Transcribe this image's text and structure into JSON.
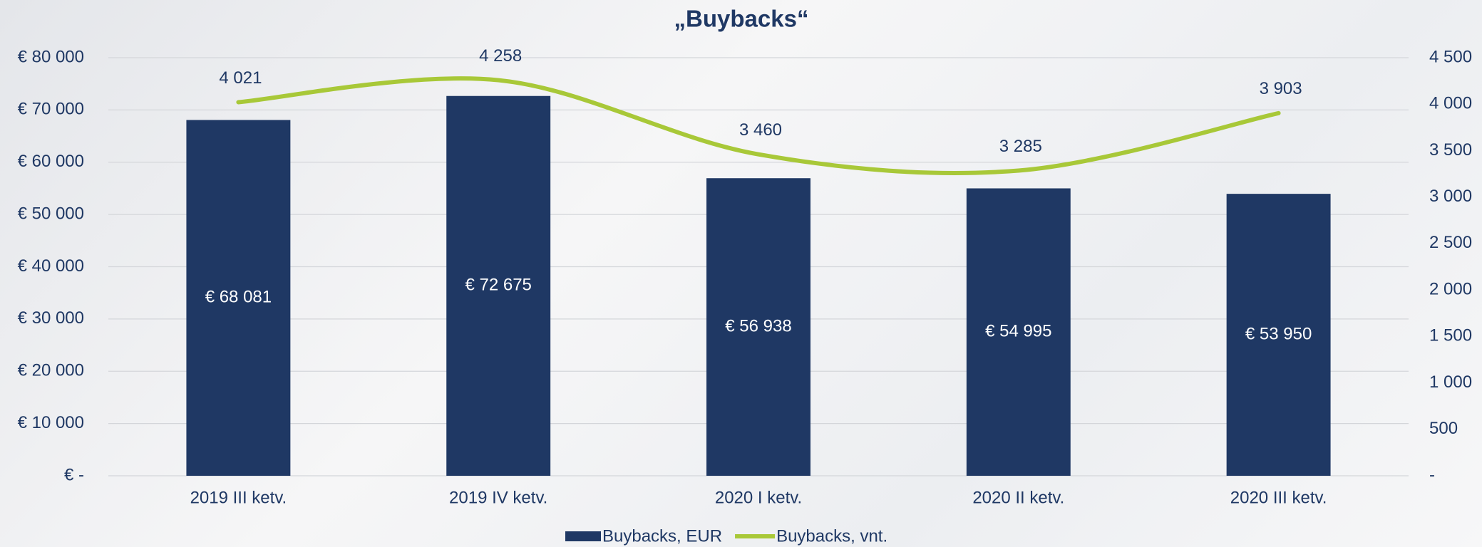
{
  "chart_data": {
    "type": "bar",
    "title": "„Buybacks“",
    "categories": [
      "2019 III ketv.",
      "2019 IV ketv.",
      "2020 I ketv.",
      "2020 II ketv.",
      "2020 III ketv."
    ],
    "series": [
      {
        "name": "Buybacks, EUR",
        "type": "bar",
        "color": "#1f3864",
        "values": [
          68081,
          72675,
          56938,
          54995,
          53950
        ],
        "value_labels": [
          "€ 68 081",
          "€ 72 675",
          "€ 56 938",
          "€ 54 995",
          "€ 53 950"
        ]
      },
      {
        "name": "Buybacks, vnt.",
        "type": "line",
        "axis": "y2",
        "color": "#a8c838",
        "values": [
          4021,
          4258,
          3460,
          3285,
          3903
        ],
        "value_labels": [
          "4 021",
          "4 258",
          "3 460",
          "3 285",
          "3 903"
        ]
      }
    ],
    "ylim": [
      0,
      80000
    ],
    "yticks": [
      {
        "value": 0,
        "label": "€ -"
      },
      {
        "value": 10000,
        "label": "€ 10 000"
      },
      {
        "value": 20000,
        "label": "€ 20 000"
      },
      {
        "value": 30000,
        "label": "€ 30 000"
      },
      {
        "value": 40000,
        "label": "€ 40 000"
      },
      {
        "value": 50000,
        "label": "€ 50 000"
      },
      {
        "value": 60000,
        "label": "€ 60 000"
      },
      {
        "value": 70000,
        "label": "€ 70 000"
      },
      {
        "value": 80000,
        "label": "€ 80 000"
      }
    ],
    "y2lim": [
      0,
      4500
    ],
    "y2ticks": [
      {
        "value": 0,
        "label": "-"
      },
      500,
      {
        "value": 1000,
        "label": "1 000"
      },
      {
        "value": 1500,
        "label": "1 500"
      },
      {
        "value": 2000,
        "label": "2 000"
      },
      {
        "value": 2500,
        "label": "2 500"
      },
      {
        "value": 3000,
        "label": "3 000"
      },
      {
        "value": 3500,
        "label": "3 500"
      },
      {
        "value": 4000,
        "label": "4 000"
      },
      {
        "value": 4500,
        "label": "4 500"
      }
    ],
    "grid": true,
    "legend": "bottom"
  }
}
